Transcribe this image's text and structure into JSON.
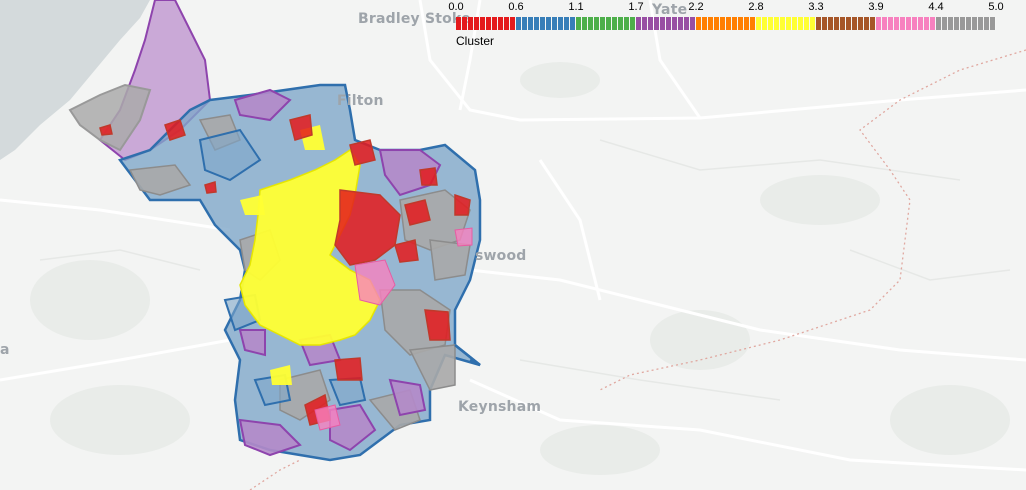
{
  "places": [
    {
      "id": "bradley-stoke",
      "label": "Bradley Stoke"
    },
    {
      "id": "yate",
      "label": "Yate"
    },
    {
      "id": "filton",
      "label": "Filton"
    },
    {
      "id": "kingswood",
      "label": "swood"
    },
    {
      "id": "keynsham",
      "label": "Keynsham"
    },
    {
      "id": "west-edge",
      "label": "a"
    }
  ],
  "legend": {
    "title": "Cluster",
    "ticks": [
      "0.0",
      "0.6",
      "1.1",
      "1.7",
      "2.2",
      "2.8",
      "3.3",
      "3.9",
      "4.4",
      "5.0"
    ],
    "colors": [
      "#e41a1c",
      "#377eb8",
      "#4daf4a",
      "#984ea3",
      "#ff7f00",
      "#ffff33",
      "#a65628",
      "#f781bf",
      "#999999"
    ]
  },
  "colors": {
    "water": "#d4dadc",
    "land": "#f3f4f3",
    "road": "#ffffff",
    "boundary": "#e0a8a0"
  }
}
